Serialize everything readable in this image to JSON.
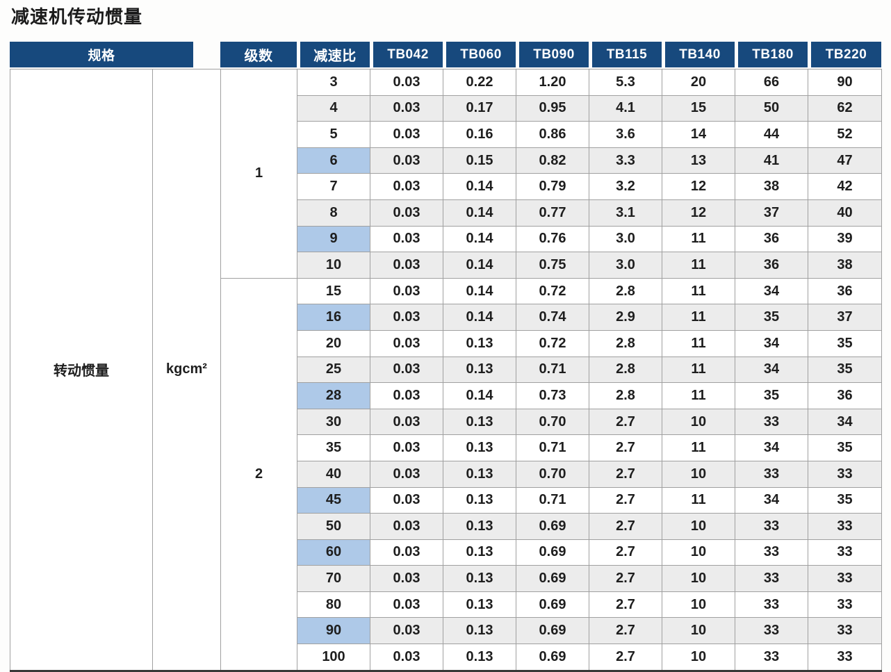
{
  "title": "减速机传动惯量",
  "table": {
    "header": {
      "spec": "规格",
      "stages": "级数",
      "ratio": "减速比",
      "models": [
        "TB042",
        "TB060",
        "TB090",
        "TB115",
        "TB140",
        "TB180",
        "TB220"
      ]
    },
    "spec_label": "转动惯量",
    "unit_label": "kgcm²",
    "colors": {
      "header_bg": "#17497d",
      "header_text": "#ffffff",
      "stripe": "#ececec",
      "highlight": "#aec9e8",
      "grid_line": "#a0a0a0",
      "bottom_border": "#383838"
    },
    "groups": [
      {
        "stage": "1",
        "rows": [
          {
            "ratio": "3",
            "highlight": false,
            "values": [
              "0.03",
              "0.22",
              "1.20",
              "5.3",
              "20",
              "66",
              "90"
            ]
          },
          {
            "ratio": "4",
            "highlight": false,
            "values": [
              "0.03",
              "0.17",
              "0.95",
              "4.1",
              "15",
              "50",
              "62"
            ]
          },
          {
            "ratio": "5",
            "highlight": false,
            "values": [
              "0.03",
              "0.16",
              "0.86",
              "3.6",
              "14",
              "44",
              "52"
            ]
          },
          {
            "ratio": "6",
            "highlight": true,
            "values": [
              "0.03",
              "0.15",
              "0.82",
              "3.3",
              "13",
              "41",
              "47"
            ]
          },
          {
            "ratio": "7",
            "highlight": false,
            "values": [
              "0.03",
              "0.14",
              "0.79",
              "3.2",
              "12",
              "38",
              "42"
            ]
          },
          {
            "ratio": "8",
            "highlight": false,
            "values": [
              "0.03",
              "0.14",
              "0.77",
              "3.1",
              "12",
              "37",
              "40"
            ]
          },
          {
            "ratio": "9",
            "highlight": true,
            "values": [
              "0.03",
              "0.14",
              "0.76",
              "3.0",
              "11",
              "36",
              "39"
            ]
          },
          {
            "ratio": "10",
            "highlight": false,
            "values": [
              "0.03",
              "0.14",
              "0.75",
              "3.0",
              "11",
              "36",
              "38"
            ]
          }
        ]
      },
      {
        "stage": "2",
        "rows": [
          {
            "ratio": "15",
            "highlight": false,
            "values": [
              "0.03",
              "0.14",
              "0.72",
              "2.8",
              "11",
              "34",
              "36"
            ]
          },
          {
            "ratio": "16",
            "highlight": true,
            "values": [
              "0.03",
              "0.14",
              "0.74",
              "2.9",
              "11",
              "35",
              "37"
            ]
          },
          {
            "ratio": "20",
            "highlight": false,
            "values": [
              "0.03",
              "0.13",
              "0.72",
              "2.8",
              "11",
              "34",
              "35"
            ]
          },
          {
            "ratio": "25",
            "highlight": false,
            "values": [
              "0.03",
              "0.13",
              "0.71",
              "2.8",
              "11",
              "34",
              "35"
            ]
          },
          {
            "ratio": "28",
            "highlight": true,
            "values": [
              "0.03",
              "0.14",
              "0.73",
              "2.8",
              "11",
              "35",
              "36"
            ]
          },
          {
            "ratio": "30",
            "highlight": false,
            "values": [
              "0.03",
              "0.13",
              "0.70",
              "2.7",
              "10",
              "33",
              "34"
            ]
          },
          {
            "ratio": "35",
            "highlight": false,
            "values": [
              "0.03",
              "0.13",
              "0.71",
              "2.7",
              "11",
              "34",
              "35"
            ]
          },
          {
            "ratio": "40",
            "highlight": false,
            "values": [
              "0.03",
              "0.13",
              "0.70",
              "2.7",
              "10",
              "33",
              "33"
            ]
          },
          {
            "ratio": "45",
            "highlight": true,
            "values": [
              "0.03",
              "0.13",
              "0.71",
              "2.7",
              "11",
              "34",
              "35"
            ]
          },
          {
            "ratio": "50",
            "highlight": false,
            "values": [
              "0.03",
              "0.13",
              "0.69",
              "2.7",
              "10",
              "33",
              "33"
            ]
          },
          {
            "ratio": "60",
            "highlight": true,
            "values": [
              "0.03",
              "0.13",
              "0.69",
              "2.7",
              "10",
              "33",
              "33"
            ]
          },
          {
            "ratio": "70",
            "highlight": false,
            "values": [
              "0.03",
              "0.13",
              "0.69",
              "2.7",
              "10",
              "33",
              "33"
            ]
          },
          {
            "ratio": "80",
            "highlight": false,
            "values": [
              "0.03",
              "0.13",
              "0.69",
              "2.7",
              "10",
              "33",
              "33"
            ]
          },
          {
            "ratio": "90",
            "highlight": true,
            "values": [
              "0.03",
              "0.13",
              "0.69",
              "2.7",
              "10",
              "33",
              "33"
            ]
          },
          {
            "ratio": "100",
            "highlight": false,
            "values": [
              "0.03",
              "0.13",
              "0.69",
              "2.7",
              "10",
              "33",
              "33"
            ]
          }
        ]
      }
    ]
  }
}
